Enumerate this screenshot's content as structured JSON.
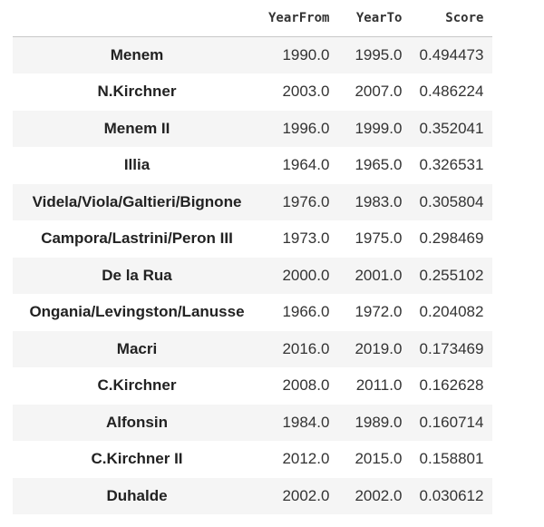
{
  "table": {
    "columns": [
      "YearFrom",
      "YearTo",
      "Score"
    ],
    "rows": [
      {
        "name": "Menem",
        "year_from": "1990.0",
        "year_to": "1995.0",
        "score": "0.494473"
      },
      {
        "name": "N.Kirchner",
        "year_from": "2003.0",
        "year_to": "2007.0",
        "score": "0.486224"
      },
      {
        "name": "Menem II",
        "year_from": "1996.0",
        "year_to": "1999.0",
        "score": "0.352041"
      },
      {
        "name": "Illia",
        "year_from": "1964.0",
        "year_to": "1965.0",
        "score": "0.326531"
      },
      {
        "name": "Videla/Viola/Galtieri/Bignone",
        "year_from": "1976.0",
        "year_to": "1983.0",
        "score": "0.305804"
      },
      {
        "name": "Campora/Lastrini/Peron III",
        "year_from": "1973.0",
        "year_to": "1975.0",
        "score": "0.298469"
      },
      {
        "name": "De la Rua",
        "year_from": "2000.0",
        "year_to": "2001.0",
        "score": "0.255102"
      },
      {
        "name": "Ongania/Levingston/Lanusse",
        "year_from": "1966.0",
        "year_to": "1972.0",
        "score": "0.204082"
      },
      {
        "name": "Macri",
        "year_from": "2016.0",
        "year_to": "2019.0",
        "score": "0.173469"
      },
      {
        "name": "C.Kirchner",
        "year_from": "2008.0",
        "year_to": "2011.0",
        "score": "0.162628"
      },
      {
        "name": "Alfonsin",
        "year_from": "1984.0",
        "year_to": "1989.0",
        "score": "0.160714"
      },
      {
        "name": "C.Kirchner II",
        "year_from": "2012.0",
        "year_to": "2015.0",
        "score": "0.158801"
      },
      {
        "name": "Duhalde",
        "year_from": "2002.0",
        "year_to": "2002.0",
        "score": "0.030612"
      }
    ]
  }
}
